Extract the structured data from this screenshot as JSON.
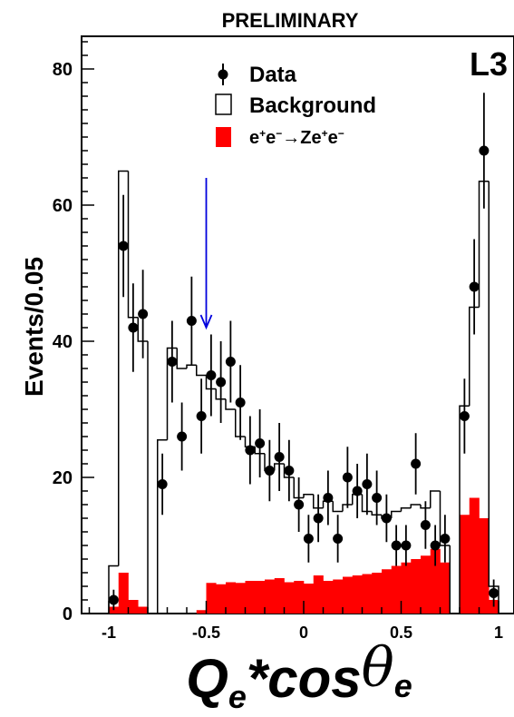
{
  "header": {
    "preliminary": "PRELIMINARY",
    "experiment": "L3"
  },
  "colors": {
    "signal": "#ff0000",
    "axis": "#000000",
    "background_line": "#000000",
    "arrow": "#0000dd"
  },
  "chart_data": {
    "type": "bar",
    "title": "",
    "xlabel": "Q",
    "xlabel_sub": "e",
    "xlabel_mid": "*cos",
    "xlabel_theta": "θ",
    "ylabel": "Events/0.05",
    "xlim": [
      -1.1,
      1.0
    ],
    "ylim": [
      0,
      85
    ],
    "x_ticks": [
      {
        "v": -1,
        "label": "-1"
      },
      {
        "v": -0.5,
        "label": "-0.5"
      },
      {
        "v": 0,
        "label": "0"
      },
      {
        "v": 0.5,
        "label": "0.5"
      },
      {
        "v": 1,
        "label": "1"
      }
    ],
    "y_ticks": [
      {
        "v": 0,
        "label": "0"
      },
      {
        "v": 20,
        "label": "20"
      },
      {
        "v": 40,
        "label": "40"
      },
      {
        "v": 60,
        "label": "60"
      },
      {
        "v": 80,
        "label": "80"
      }
    ],
    "legend": [
      {
        "key": "data",
        "label": "Data"
      },
      {
        "key": "background",
        "label": "Background"
      },
      {
        "key": "signal",
        "label": "e+e−→Ze+e−",
        "html": "e<sup>+</sup>e<sup>−</sup>→Ze<sup>+</sup>e<sup>−</sup>"
      }
    ],
    "legend_position": "top-center",
    "cut_arrow": {
      "x": -0.5,
      "y_top": 64,
      "y_bottom": 42
    },
    "background_hist": [
      {
        "x0": -1.0,
        "x1": -0.95,
        "v": 7
      },
      {
        "x0": -0.95,
        "x1": -0.9,
        "v": 65
      },
      {
        "x0": -0.9,
        "x1": -0.85,
        "v": 43.5
      },
      {
        "x0": -0.85,
        "x1": -0.8,
        "v": 40
      },
      {
        "x0": -0.8,
        "x1": -0.75,
        "v": 0
      },
      {
        "x0": -0.75,
        "x1": -0.7,
        "v": 25.5
      },
      {
        "x0": -0.7,
        "x1": -0.65,
        "v": 39
      },
      {
        "x0": -0.65,
        "x1": -0.6,
        "v": 36
      },
      {
        "x0": -0.6,
        "x1": -0.55,
        "v": 36.5
      },
      {
        "x0": -0.55,
        "x1": -0.5,
        "v": 35
      },
      {
        "x0": -0.5,
        "x1": -0.45,
        "v": 33
      },
      {
        "x0": -0.45,
        "x1": -0.4,
        "v": 31.5
      },
      {
        "x0": -0.4,
        "x1": -0.35,
        "v": 30
      },
      {
        "x0": -0.35,
        "x1": -0.3,
        "v": 26
      },
      {
        "x0": -0.3,
        "x1": -0.25,
        "v": 24.5
      },
      {
        "x0": -0.25,
        "x1": -0.2,
        "v": 23.5
      },
      {
        "x0": -0.2,
        "x1": -0.15,
        "v": 21
      },
      {
        "x0": -0.15,
        "x1": -0.1,
        "v": 22
      },
      {
        "x0": -0.1,
        "x1": -0.05,
        "v": 20
      },
      {
        "x0": -0.05,
        "x1": 0.0,
        "v": 17
      },
      {
        "x0": 0.0,
        "x1": 0.05,
        "v": 17.5
      },
      {
        "x0": 0.05,
        "x1": 0.1,
        "v": 15.5
      },
      {
        "x0": 0.1,
        "x1": 0.15,
        "v": 16.5
      },
      {
        "x0": 0.15,
        "x1": 0.2,
        "v": 15
      },
      {
        "x0": 0.2,
        "x1": 0.25,
        "v": 16
      },
      {
        "x0": 0.25,
        "x1": 0.3,
        "v": 17.5
      },
      {
        "x0": 0.3,
        "x1": 0.35,
        "v": 15
      },
      {
        "x0": 0.35,
        "x1": 0.4,
        "v": 14.5
      },
      {
        "x0": 0.4,
        "x1": 0.45,
        "v": 14
      },
      {
        "x0": 0.45,
        "x1": 0.5,
        "v": 15
      },
      {
        "x0": 0.5,
        "x1": 0.55,
        "v": 15.5
      },
      {
        "x0": 0.55,
        "x1": 0.6,
        "v": 16
      },
      {
        "x0": 0.6,
        "x1": 0.65,
        "v": 15.5
      },
      {
        "x0": 0.65,
        "x1": 0.7,
        "v": 18
      },
      {
        "x0": 0.7,
        "x1": 0.75,
        "v": 10
      },
      {
        "x0": 0.75,
        "x1": 0.8,
        "v": 0
      },
      {
        "x0": 0.8,
        "x1": 0.85,
        "v": 30.5
      },
      {
        "x0": 0.85,
        "x1": 0.9,
        "v": 45
      },
      {
        "x0": 0.9,
        "x1": 0.95,
        "v": 63.5
      },
      {
        "x0": 0.95,
        "x1": 1.0,
        "v": 4
      }
    ],
    "signal_hist": [
      {
        "x0": -1.0,
        "x1": -0.95,
        "v": 1
      },
      {
        "x0": -0.95,
        "x1": -0.9,
        "v": 6
      },
      {
        "x0": -0.9,
        "x1": -0.85,
        "v": 2
      },
      {
        "x0": -0.85,
        "x1": -0.8,
        "v": 1
      },
      {
        "x0": -0.55,
        "x1": -0.5,
        "v": 0.5
      },
      {
        "x0": -0.5,
        "x1": -0.45,
        "v": 4.5
      },
      {
        "x0": -0.45,
        "x1": -0.4,
        "v": 4.3
      },
      {
        "x0": -0.4,
        "x1": -0.35,
        "v": 4.6
      },
      {
        "x0": -0.35,
        "x1": -0.3,
        "v": 4.5
      },
      {
        "x0": -0.3,
        "x1": -0.25,
        "v": 4.8
      },
      {
        "x0": -0.25,
        "x1": -0.2,
        "v": 4.8
      },
      {
        "x0": -0.2,
        "x1": -0.15,
        "v": 5.0
      },
      {
        "x0": -0.15,
        "x1": -0.1,
        "v": 5.2
      },
      {
        "x0": -0.1,
        "x1": -0.05,
        "v": 4.6
      },
      {
        "x0": -0.05,
        "x1": 0.0,
        "v": 4.8
      },
      {
        "x0": 0.0,
        "x1": 0.05,
        "v": 4.4
      },
      {
        "x0": 0.05,
        "x1": 0.1,
        "v": 5.6
      },
      {
        "x0": 0.1,
        "x1": 0.15,
        "v": 4.8
      },
      {
        "x0": 0.15,
        "x1": 0.2,
        "v": 5.0
      },
      {
        "x0": 0.2,
        "x1": 0.25,
        "v": 5.4
      },
      {
        "x0": 0.25,
        "x1": 0.3,
        "v": 5.6
      },
      {
        "x0": 0.3,
        "x1": 0.35,
        "v": 5.8
      },
      {
        "x0": 0.35,
        "x1": 0.4,
        "v": 6.0
      },
      {
        "x0": 0.4,
        "x1": 0.45,
        "v": 6.5
      },
      {
        "x0": 0.45,
        "x1": 0.5,
        "v": 7.0
      },
      {
        "x0": 0.5,
        "x1": 0.55,
        "v": 7.5
      },
      {
        "x0": 0.55,
        "x1": 0.6,
        "v": 8.0
      },
      {
        "x0": 0.6,
        "x1": 0.65,
        "v": 8.5
      },
      {
        "x0": 0.65,
        "x1": 0.7,
        "v": 9.5
      },
      {
        "x0": 0.7,
        "x1": 0.75,
        "v": 7.5
      },
      {
        "x0": 0.8,
        "x1": 0.85,
        "v": 14.5
      },
      {
        "x0": 0.85,
        "x1": 0.9,
        "v": 17
      },
      {
        "x0": 0.9,
        "x1": 0.95,
        "v": 14
      },
      {
        "x0": 0.95,
        "x1": 1.0,
        "v": 2
      }
    ],
    "data_points": [
      {
        "x": -0.975,
        "y": 2,
        "err": 1.5
      },
      {
        "x": -0.925,
        "y": 54,
        "err": 7.5
      },
      {
        "x": -0.875,
        "y": 42,
        "err": 6.5
      },
      {
        "x": -0.825,
        "y": 44,
        "err": 6.5
      },
      {
        "x": -0.725,
        "y": 19,
        "err": 4.5
      },
      {
        "x": -0.675,
        "y": 37,
        "err": 6
      },
      {
        "x": -0.625,
        "y": 26,
        "err": 5
      },
      {
        "x": -0.575,
        "y": 43,
        "err": 6.5
      },
      {
        "x": -0.525,
        "y": 29,
        "err": 5.5
      },
      {
        "x": -0.475,
        "y": 35,
        "err": 6
      },
      {
        "x": -0.425,
        "y": 34,
        "err": 6
      },
      {
        "x": -0.375,
        "y": 37,
        "err": 6
      },
      {
        "x": -0.325,
        "y": 31,
        "err": 5.5
      },
      {
        "x": -0.275,
        "y": 24,
        "err": 5
      },
      {
        "x": -0.225,
        "y": 25,
        "err": 5
      },
      {
        "x": -0.175,
        "y": 21,
        "err": 4.5
      },
      {
        "x": -0.125,
        "y": 23,
        "err": 5
      },
      {
        "x": -0.075,
        "y": 21,
        "err": 4.5
      },
      {
        "x": -0.025,
        "y": 16,
        "err": 4
      },
      {
        "x": 0.025,
        "y": 11,
        "err": 3.5
      },
      {
        "x": 0.075,
        "y": 14,
        "err": 3.5
      },
      {
        "x": 0.125,
        "y": 17,
        "err": 4
      },
      {
        "x": 0.175,
        "y": 11,
        "err": 3.5
      },
      {
        "x": 0.225,
        "y": 20,
        "err": 4.5
      },
      {
        "x": 0.275,
        "y": 18,
        "err": 4
      },
      {
        "x": 0.325,
        "y": 19,
        "err": 4.5
      },
      {
        "x": 0.375,
        "y": 17,
        "err": 4
      },
      {
        "x": 0.425,
        "y": 14,
        "err": 3.5
      },
      {
        "x": 0.475,
        "y": 10,
        "err": 3
      },
      {
        "x": 0.525,
        "y": 10,
        "err": 3
      },
      {
        "x": 0.575,
        "y": 22,
        "err": 4.5
      },
      {
        "x": 0.625,
        "y": 13,
        "err": 3.5
      },
      {
        "x": 0.675,
        "y": 10,
        "err": 3
      },
      {
        "x": 0.725,
        "y": 11,
        "err": 3.5
      },
      {
        "x": 0.825,
        "y": 29,
        "err": 5.5
      },
      {
        "x": 0.875,
        "y": 48,
        "err": 7
      },
      {
        "x": 0.925,
        "y": 68,
        "err": 8.5
      },
      {
        "x": 0.975,
        "y": 3,
        "err": 2
      }
    ]
  }
}
